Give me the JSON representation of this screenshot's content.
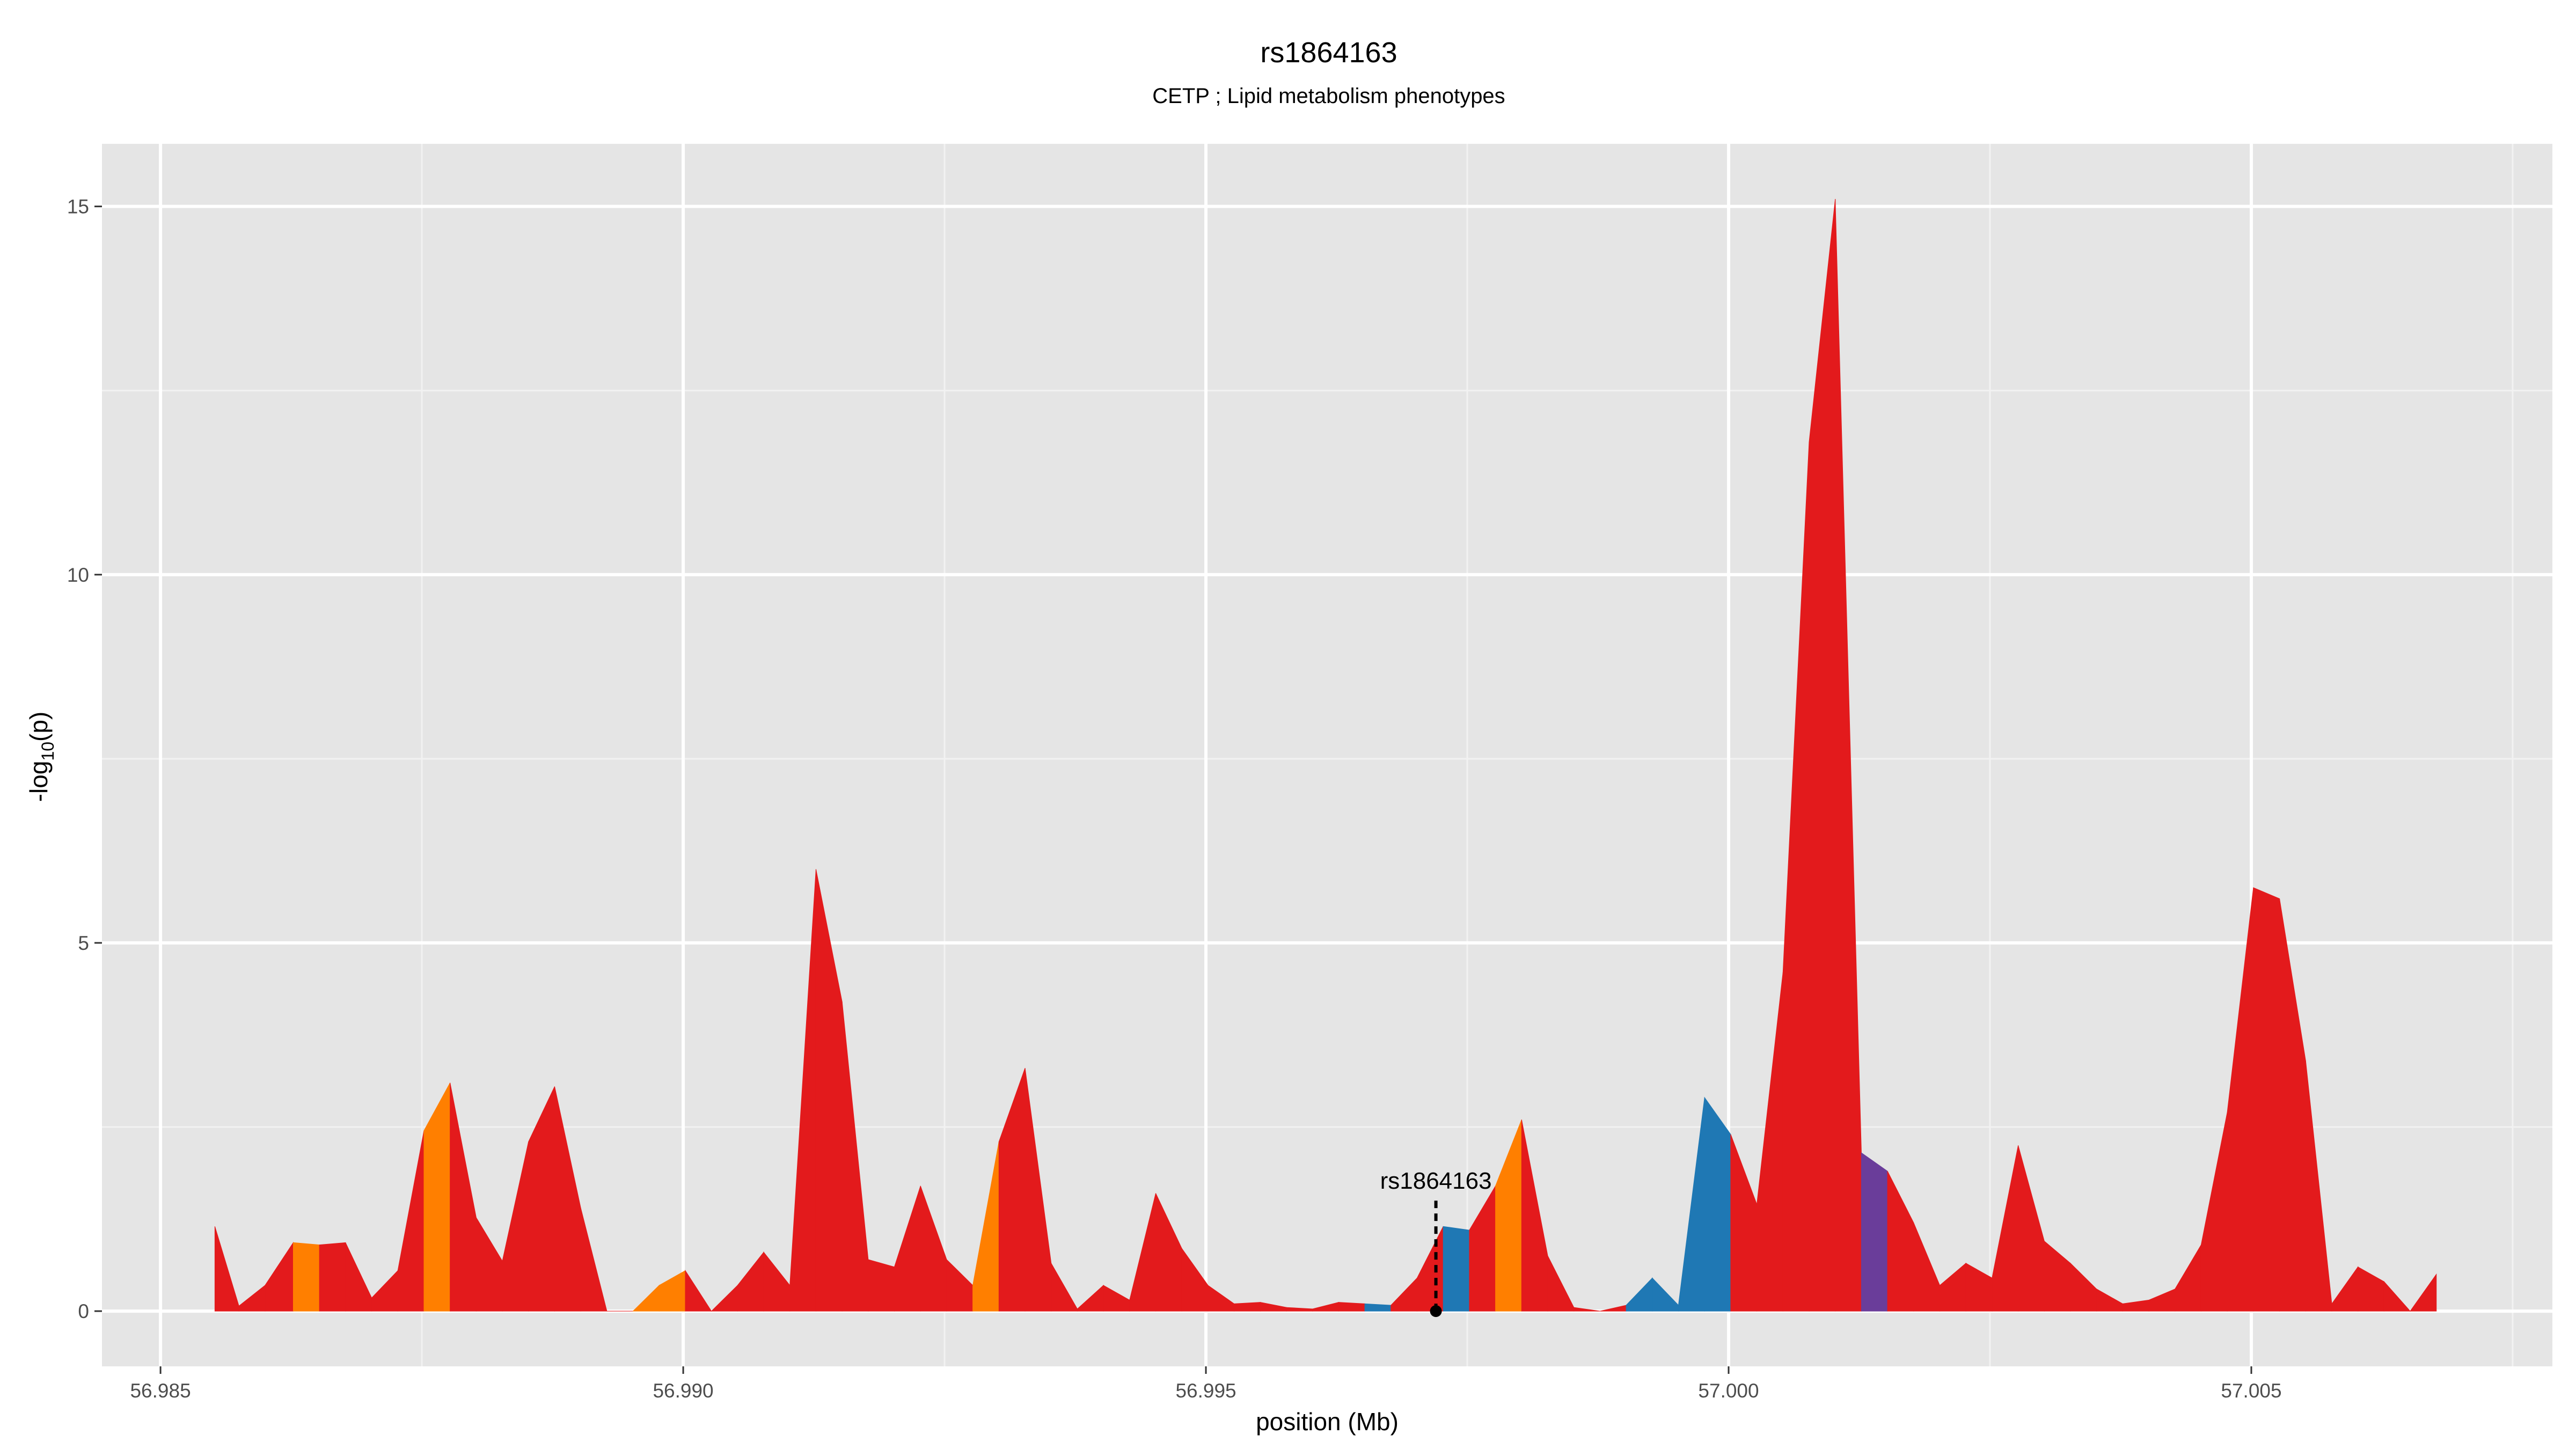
{
  "chart_data": {
    "type": "area",
    "title": "rs1864163",
    "subtitle": "CETP ; Lipid metabolism phenotypes",
    "xlabel": "position (Mb)",
    "ylabel_main": "-log",
    "ylabel_sub": "10",
    "ylabel_tail": "(p)",
    "xlim": [
      56.98444,
      57.00788
    ],
    "ylim": [
      -0.75,
      15.85
    ],
    "x_ticks": [
      56.985,
      56.99,
      56.995,
      57.0,
      57.005
    ],
    "x_tick_labels": [
      "56.985",
      "56.990",
      "56.995",
      "57.000",
      "57.005"
    ],
    "y_ticks": [
      0,
      5,
      10,
      15
    ],
    "y_tick_labels": [
      "0",
      "5",
      "10",
      "15"
    ],
    "grid": true,
    "background": "#e5e5e5",
    "annotation": {
      "label": "rs1864163",
      "x": 56.9972,
      "y": 1.5
    },
    "colors": {
      "red": "#e31a1c",
      "orange": "#ff7f00",
      "blue": "#1f78b4",
      "purple": "#6a3d9a"
    },
    "points": [
      {
        "x": 56.98552,
        "y": 1.15,
        "c": "red"
      },
      {
        "x": 56.98575,
        "y": 0.07,
        "c": "red"
      },
      {
        "x": 56.986,
        "y": 0.35,
        "c": "red"
      },
      {
        "x": 56.98627,
        "y": 0.93,
        "c": "orange"
      },
      {
        "x": 56.98652,
        "y": 0.9,
        "c": "red"
      },
      {
        "x": 56.98677,
        "y": 0.93,
        "c": "red"
      },
      {
        "x": 56.98702,
        "y": 0.18,
        "c": "red"
      },
      {
        "x": 56.98727,
        "y": 0.55,
        "c": "red"
      },
      {
        "x": 56.98752,
        "y": 2.45,
        "c": "orange"
      },
      {
        "x": 56.98777,
        "y": 3.1,
        "c": "red"
      },
      {
        "x": 56.98802,
        "y": 1.27,
        "c": "red"
      },
      {
        "x": 56.98827,
        "y": 0.68,
        "c": "red"
      },
      {
        "x": 56.98852,
        "y": 2.3,
        "c": "red"
      },
      {
        "x": 56.98877,
        "y": 3.05,
        "c": "red"
      },
      {
        "x": 56.98902,
        "y": 1.4,
        "c": "red"
      },
      {
        "x": 56.98927,
        "y": 0.0,
        "c": "red"
      },
      {
        "x": 56.98952,
        "y": 0.0,
        "c": "orange"
      },
      {
        "x": 56.98977,
        "y": 0.35,
        "c": "orange"
      },
      {
        "x": 56.99002,
        "y": 0.55,
        "c": "red"
      },
      {
        "x": 56.99027,
        "y": 0.0,
        "c": "red"
      },
      {
        "x": 56.99052,
        "y": 0.35,
        "c": "red"
      },
      {
        "x": 56.99077,
        "y": 0.8,
        "c": "red"
      },
      {
        "x": 56.99102,
        "y": 0.35,
        "c": "red"
      },
      {
        "x": 56.99127,
        "y": 6.0,
        "c": "red"
      },
      {
        "x": 56.99152,
        "y": 4.2,
        "c": "red"
      },
      {
        "x": 56.99177,
        "y": 0.7,
        "c": "red"
      },
      {
        "x": 56.99202,
        "y": 0.6,
        "c": "red"
      },
      {
        "x": 56.99227,
        "y": 1.7,
        "c": "red"
      },
      {
        "x": 56.99252,
        "y": 0.7,
        "c": "red"
      },
      {
        "x": 56.99277,
        "y": 0.35,
        "c": "orange"
      },
      {
        "x": 56.99302,
        "y": 2.3,
        "c": "red"
      },
      {
        "x": 56.99327,
        "y": 3.3,
        "c": "red"
      },
      {
        "x": 56.99352,
        "y": 0.65,
        "c": "red"
      },
      {
        "x": 56.99377,
        "y": 0.03,
        "c": "red"
      },
      {
        "x": 56.99402,
        "y": 0.35,
        "c": "red"
      },
      {
        "x": 56.99427,
        "y": 0.15,
        "c": "red"
      },
      {
        "x": 56.99452,
        "y": 1.6,
        "c": "red"
      },
      {
        "x": 56.99477,
        "y": 0.85,
        "c": "red"
      },
      {
        "x": 56.99502,
        "y": 0.35,
        "c": "red"
      },
      {
        "x": 56.99527,
        "y": 0.1,
        "c": "red"
      },
      {
        "x": 56.99552,
        "y": 0.12,
        "c": "red"
      },
      {
        "x": 56.99577,
        "y": 0.05,
        "c": "red"
      },
      {
        "x": 56.99602,
        "y": 0.03,
        "c": "red"
      },
      {
        "x": 56.99627,
        "y": 0.12,
        "c": "red"
      },
      {
        "x": 56.99652,
        "y": 0.1,
        "c": "blue"
      },
      {
        "x": 56.99677,
        "y": 0.08,
        "c": "red"
      },
      {
        "x": 56.99702,
        "y": 0.45,
        "c": "red"
      },
      {
        "x": 56.99727,
        "y": 1.15,
        "c": "blue"
      },
      {
        "x": 56.99752,
        "y": 1.1,
        "c": "red"
      },
      {
        "x": 56.99777,
        "y": 1.7,
        "c": "orange"
      },
      {
        "x": 56.99802,
        "y": 2.6,
        "c": "red"
      },
      {
        "x": 56.99827,
        "y": 0.75,
        "c": "red"
      },
      {
        "x": 56.99852,
        "y": 0.05,
        "c": "red"
      },
      {
        "x": 56.99877,
        "y": 0.0,
        "c": "red"
      },
      {
        "x": 56.99902,
        "y": 0.08,
        "c": "blue"
      },
      {
        "x": 56.99927,
        "y": 0.45,
        "c": "blue"
      },
      {
        "x": 56.99952,
        "y": 0.08,
        "c": "blue"
      },
      {
        "x": 56.99977,
        "y": 2.9,
        "c": "blue"
      },
      {
        "x": 57.00002,
        "y": 2.4,
        "c": "red"
      },
      {
        "x": 57.00027,
        "y": 1.45,
        "c": "red"
      },
      {
        "x": 57.00052,
        "y": 4.6,
        "c": "red"
      },
      {
        "x": 57.00077,
        "y": 11.8,
        "c": "red"
      },
      {
        "x": 57.00102,
        "y": 15.1,
        "c": "red"
      },
      {
        "x": 57.00127,
        "y": 2.15,
        "c": "purple"
      },
      {
        "x": 57.00152,
        "y": 1.9,
        "c": "red"
      },
      {
        "x": 57.00177,
        "y": 1.2,
        "c": "red"
      },
      {
        "x": 57.00202,
        "y": 0.35,
        "c": "red"
      },
      {
        "x": 57.00227,
        "y": 0.65,
        "c": "red"
      },
      {
        "x": 57.00252,
        "y": 0.45,
        "c": "red"
      },
      {
        "x": 57.00277,
        "y": 2.25,
        "c": "red"
      },
      {
        "x": 57.00302,
        "y": 0.95,
        "c": "red"
      },
      {
        "x": 57.00327,
        "y": 0.65,
        "c": "red"
      },
      {
        "x": 57.00352,
        "y": 0.3,
        "c": "red"
      },
      {
        "x": 57.00377,
        "y": 0.1,
        "c": "red"
      },
      {
        "x": 57.00402,
        "y": 0.15,
        "c": "red"
      },
      {
        "x": 57.00427,
        "y": 0.3,
        "c": "red"
      },
      {
        "x": 57.00452,
        "y": 0.9,
        "c": "red"
      },
      {
        "x": 57.00477,
        "y": 2.7,
        "c": "red"
      },
      {
        "x": 57.00502,
        "y": 5.75,
        "c": "red"
      },
      {
        "x": 57.00527,
        "y": 5.6,
        "c": "red"
      },
      {
        "x": 57.00552,
        "y": 3.4,
        "c": "red"
      },
      {
        "x": 57.00577,
        "y": 0.1,
        "c": "red"
      },
      {
        "x": 57.00602,
        "y": 0.6,
        "c": "red"
      },
      {
        "x": 57.00627,
        "y": 0.4,
        "c": "red"
      },
      {
        "x": 57.00652,
        "y": 0.0,
        "c": "red"
      },
      {
        "x": 57.00677,
        "y": 0.5,
        "c": "red"
      }
    ]
  }
}
